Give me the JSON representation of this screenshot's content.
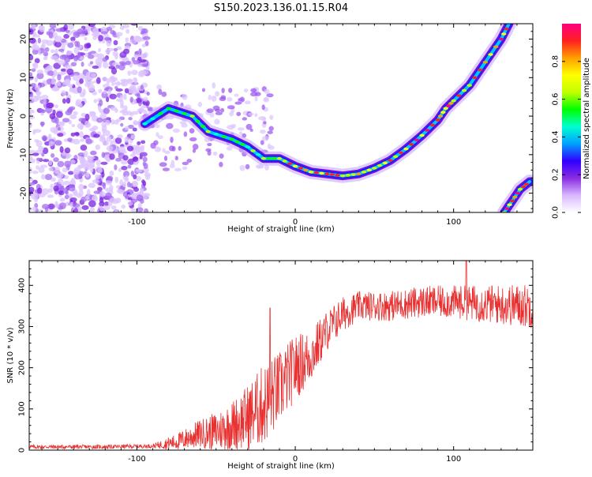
{
  "title": "S150.2023.136.01.15.R04",
  "chart_data": [
    {
      "type": "heatmap",
      "xlabel": "Height of straight line (km)",
      "ylabel": "Frequency (Hz)",
      "xlim": [
        -168,
        150
      ],
      "ylim": [
        -25,
        24
      ],
      "x_ticks": [
        -100,
        0,
        100
      ],
      "y_ticks": [
        -20,
        -10,
        0,
        10,
        20
      ],
      "grid": false,
      "colorbar": {
        "label": "Normalized spectral amplitude",
        "range": [
          0,
          1
        ],
        "ticks": [
          "0.0",
          "0.2",
          "0.4",
          "0.6",
          "0.8"
        ],
        "colors": [
          "#ffffff",
          "#d8b8ff",
          "#8a2be2",
          "#3000ff",
          "#00a0ff",
          "#00ffd0",
          "#00ff00",
          "#c0ff00",
          "#ffff00",
          "#ffa000",
          "#ff2020",
          "#ff0080"
        ]
      },
      "main_curve": [
        {
          "x": -95,
          "y": -2
        },
        {
          "x": -80,
          "y": 2
        },
        {
          "x": -65,
          "y": 0
        },
        {
          "x": -55,
          "y": -4
        },
        {
          "x": -40,
          "y": -6
        },
        {
          "x": -30,
          "y": -8
        },
        {
          "x": -20,
          "y": -11
        },
        {
          "x": -10,
          "y": -11
        },
        {
          "x": 0,
          "y": -13
        },
        {
          "x": 10,
          "y": -14.5
        },
        {
          "x": 20,
          "y": -15
        },
        {
          "x": 30,
          "y": -15.5
        },
        {
          "x": 40,
          "y": -15
        },
        {
          "x": 50,
          "y": -13.5
        },
        {
          "x": 60,
          "y": -11.5
        },
        {
          "x": 70,
          "y": -8.5
        },
        {
          "x": 80,
          "y": -5
        },
        {
          "x": 90,
          "y": -1
        },
        {
          "x": 95,
          "y": 2
        },
        {
          "x": 100,
          "y": 4
        },
        {
          "x": 110,
          "y": 8
        },
        {
          "x": 120,
          "y": 14
        },
        {
          "x": 130,
          "y": 20
        },
        {
          "x": 135,
          "y": 24
        }
      ],
      "secondary_curve": [
        {
          "x": 132,
          "y": -25
        },
        {
          "x": 137,
          "y": -22
        },
        {
          "x": 142,
          "y": -19
        },
        {
          "x": 148,
          "y": -17
        }
      ]
    },
    {
      "type": "line",
      "xlabel": "Height of straight line (km)",
      "ylabel": "SNR (10 * v/v)",
      "xlim": [
        -168,
        150
      ],
      "ylim": [
        0,
        460
      ],
      "x_ticks": [
        -100,
        0,
        100
      ],
      "y_ticks": [
        0,
        100,
        200,
        300,
        400
      ],
      "color": "#e83030",
      "grid": false,
      "trend": [
        {
          "x": -168,
          "y": 8
        },
        {
          "x": -120,
          "y": 8
        },
        {
          "x": -90,
          "y": 10
        },
        {
          "x": -75,
          "y": 20
        },
        {
          "x": -60,
          "y": 40
        },
        {
          "x": -50,
          "y": 45
        },
        {
          "x": -40,
          "y": 60
        },
        {
          "x": -30,
          "y": 80
        },
        {
          "x": -20,
          "y": 110
        },
        {
          "x": -10,
          "y": 150
        },
        {
          "x": 0,
          "y": 200
        },
        {
          "x": 10,
          "y": 230
        },
        {
          "x": 20,
          "y": 290
        },
        {
          "x": 30,
          "y": 330
        },
        {
          "x": 40,
          "y": 350
        },
        {
          "x": 60,
          "y": 350
        },
        {
          "x": 80,
          "y": 360
        },
        {
          "x": 100,
          "y": 360
        },
        {
          "x": 120,
          "y": 355
        },
        {
          "x": 150,
          "y": 350
        }
      ],
      "noise_amplitude": [
        {
          "x": -168,
          "y": 5
        },
        {
          "x": -90,
          "y": 5
        },
        {
          "x": -60,
          "y": 35
        },
        {
          "x": -40,
          "y": 60
        },
        {
          "x": -20,
          "y": 100
        },
        {
          "x": 0,
          "y": 80
        },
        {
          "x": 20,
          "y": 50
        },
        {
          "x": 40,
          "y": 35
        },
        {
          "x": 100,
          "y": 40
        },
        {
          "x": 150,
          "y": 55
        }
      ],
      "features": [
        {
          "x": 13,
          "y": 105
        },
        {
          "x": 13,
          "y": 260
        },
        {
          "x": -16,
          "y": 345
        },
        {
          "x": 108,
          "y": 460
        }
      ]
    }
  ]
}
